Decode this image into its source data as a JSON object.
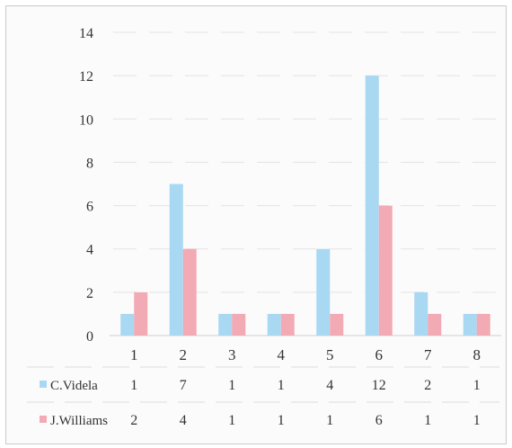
{
  "chart_data": {
    "type": "bar",
    "categories": [
      "1",
      "2",
      "3",
      "4",
      "5",
      "6",
      "7",
      "8"
    ],
    "series": [
      {
        "name": "C.Videla",
        "values": [
          1,
          7,
          1,
          1,
          4,
          12,
          2,
          1
        ],
        "color": "#a9d8f2"
      },
      {
        "name": "J.Williams",
        "values": [
          2,
          4,
          1,
          1,
          1,
          6,
          1,
          1
        ],
        "color": "#f2aab5"
      }
    ],
    "y_ticks": [
      "0",
      "2",
      "4",
      "6",
      "8",
      "10",
      "12",
      "14"
    ],
    "ylim": [
      0,
      14
    ],
    "grid": true,
    "legend": "data table below the plot",
    "data_table": true
  }
}
